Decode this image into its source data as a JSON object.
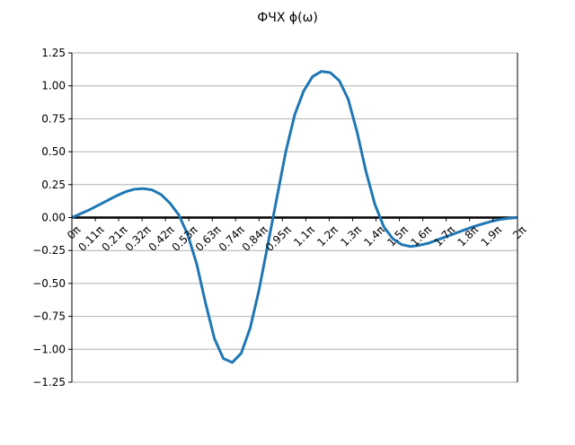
{
  "chart_data": {
    "type": "line",
    "title": "ФЧХ ϕ(ω)",
    "xlabel": "",
    "ylabel": "",
    "xlim": [
      0,
      2
    ],
    "ylim": [
      -1.25,
      1.25
    ],
    "grid": "horizontal",
    "x_ticks": [
      {
        "value": 0.0,
        "label": "0π"
      },
      {
        "value": 0.105,
        "label": "0.11π"
      },
      {
        "value": 0.21,
        "label": "0.21π"
      },
      {
        "value": 0.315,
        "label": "0.32π"
      },
      {
        "value": 0.42,
        "label": "0.42π"
      },
      {
        "value": 0.525,
        "label": "0.53π"
      },
      {
        "value": 0.63,
        "label": "0.63π"
      },
      {
        "value": 0.735,
        "label": "0.74π"
      },
      {
        "value": 0.84,
        "label": "0.84π"
      },
      {
        "value": 0.945,
        "label": "0.95π"
      },
      {
        "value": 1.05,
        "label": "1.1π"
      },
      {
        "value": 1.155,
        "label": "1.2π"
      },
      {
        "value": 1.26,
        "label": "1.3π"
      },
      {
        "value": 1.365,
        "label": "1.4π"
      },
      {
        "value": 1.47,
        "label": "1.5π"
      },
      {
        "value": 1.575,
        "label": "1.6π"
      },
      {
        "value": 1.68,
        "label": "1.7π"
      },
      {
        "value": 1.785,
        "label": "1.8π"
      },
      {
        "value": 1.89,
        "label": "1.9π"
      },
      {
        "value": 2.0,
        "label": "2π"
      }
    ],
    "y_ticks": [
      {
        "value": 1.25,
        "label": "1.25"
      },
      {
        "value": 1.0,
        "label": "1.00"
      },
      {
        "value": 0.75,
        "label": "0.75"
      },
      {
        "value": 0.5,
        "label": "0.50"
      },
      {
        "value": 0.25,
        "label": "0.25"
      },
      {
        "value": 0.0,
        "label": "0.00"
      },
      {
        "value": -0.25,
        "label": "−0.25"
      },
      {
        "value": -0.5,
        "label": "−0.50"
      },
      {
        "value": -0.75,
        "label": "−0.75"
      },
      {
        "value": -1.0,
        "label": "−1.00"
      },
      {
        "value": -1.25,
        "label": "−1.25"
      }
    ],
    "series": [
      {
        "name": "",
        "color": "#1f77b4",
        "x": [
          0,
          0.04,
          0.08,
          0.12,
          0.16,
          0.2,
          0.24,
          0.28,
          0.32,
          0.36,
          0.4,
          0.44,
          0.48,
          0.52,
          0.56,
          0.6,
          0.64,
          0.68,
          0.72,
          0.76,
          0.8,
          0.84,
          0.88,
          0.92,
          0.96,
          1.0,
          1.04,
          1.08,
          1.12,
          1.16,
          1.2,
          1.24,
          1.28,
          1.32,
          1.36,
          1.4,
          1.44,
          1.48,
          1.52,
          1.56,
          1.6,
          1.64,
          1.68,
          1.72,
          1.76,
          1.8,
          1.84,
          1.88,
          1.92,
          1.96,
          2.0
        ],
        "y": [
          0.0,
          0.03,
          0.06,
          0.095,
          0.13,
          0.165,
          0.195,
          0.215,
          0.22,
          0.21,
          0.175,
          0.11,
          0.02,
          -0.13,
          -0.35,
          -0.65,
          -0.92,
          -1.07,
          -1.1,
          -1.03,
          -0.84,
          -0.55,
          -0.2,
          0.15,
          0.5,
          0.78,
          0.96,
          1.07,
          1.11,
          1.1,
          1.04,
          0.9,
          0.65,
          0.35,
          0.1,
          -0.07,
          -0.16,
          -0.205,
          -0.22,
          -0.21,
          -0.195,
          -0.17,
          -0.145,
          -0.12,
          -0.095,
          -0.07,
          -0.05,
          -0.03,
          -0.015,
          -0.005,
          0.0
        ]
      }
    ]
  }
}
